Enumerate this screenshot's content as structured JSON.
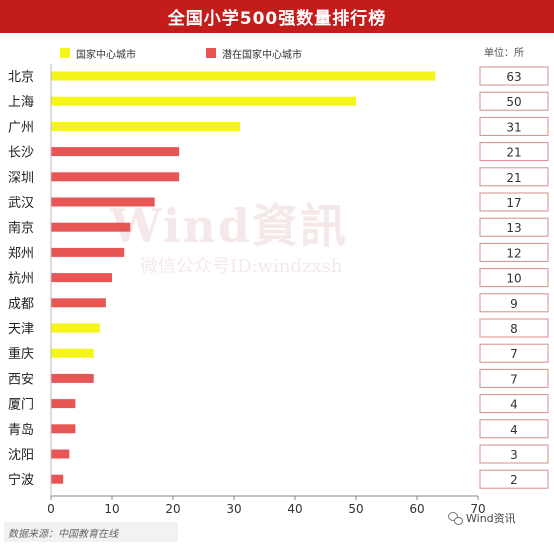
{
  "title": "全国小学500强数量排行榜",
  "unit_label": "单位：所",
  "source_label": "数据来源：中国教育在线",
  "wechat_label": "Wind资讯",
  "watermark": {
    "main": "Wind資訊",
    "sub": "微信公众号ID:windzxsh"
  },
  "legend": [
    {
      "label": "国家中心城市",
      "color": "#f5f51a"
    },
    {
      "label": "潜在国家中心城市",
      "color": "#e85555"
    }
  ],
  "chart_data": {
    "type": "bar",
    "orientation": "horizontal",
    "title": "全国小学500强数量排行榜",
    "categories": [
      "北京",
      "上海",
      "广州",
      "长沙",
      "深圳",
      "武汉",
      "南京",
      "郑州",
      "杭州",
      "成都",
      "天津",
      "重庆",
      "西安",
      "厦门",
      "青岛",
      "沈阳",
      "宁波"
    ],
    "values": [
      63,
      50,
      31,
      21,
      21,
      17,
      13,
      12,
      10,
      9,
      8,
      7,
      7,
      4,
      4,
      3,
      2
    ],
    "groups": [
      "国家中心城市",
      "国家中心城市",
      "国家中心城市",
      "潜在国家中心城市",
      "潜在国家中心城市",
      "潜在国家中心城市",
      "潜在国家中心城市",
      "潜在国家中心城市",
      "潜在国家中心城市",
      "潜在国家中心城市",
      "国家中心城市",
      "国家中心城市",
      "潜在国家中心城市",
      "潜在国家中心城市",
      "潜在国家中心城市",
      "潜在国家中心城市",
      "潜在国家中心城市"
    ],
    "xlim": [
      0,
      70
    ],
    "xticks": [
      0,
      10,
      20,
      30,
      40,
      50,
      60,
      70
    ],
    "colors": {
      "国家中心城市": "#f5f51a",
      "潜在国家中心城市": "#e85555"
    },
    "value_box_border": "#d98b8b",
    "grid": false
  }
}
